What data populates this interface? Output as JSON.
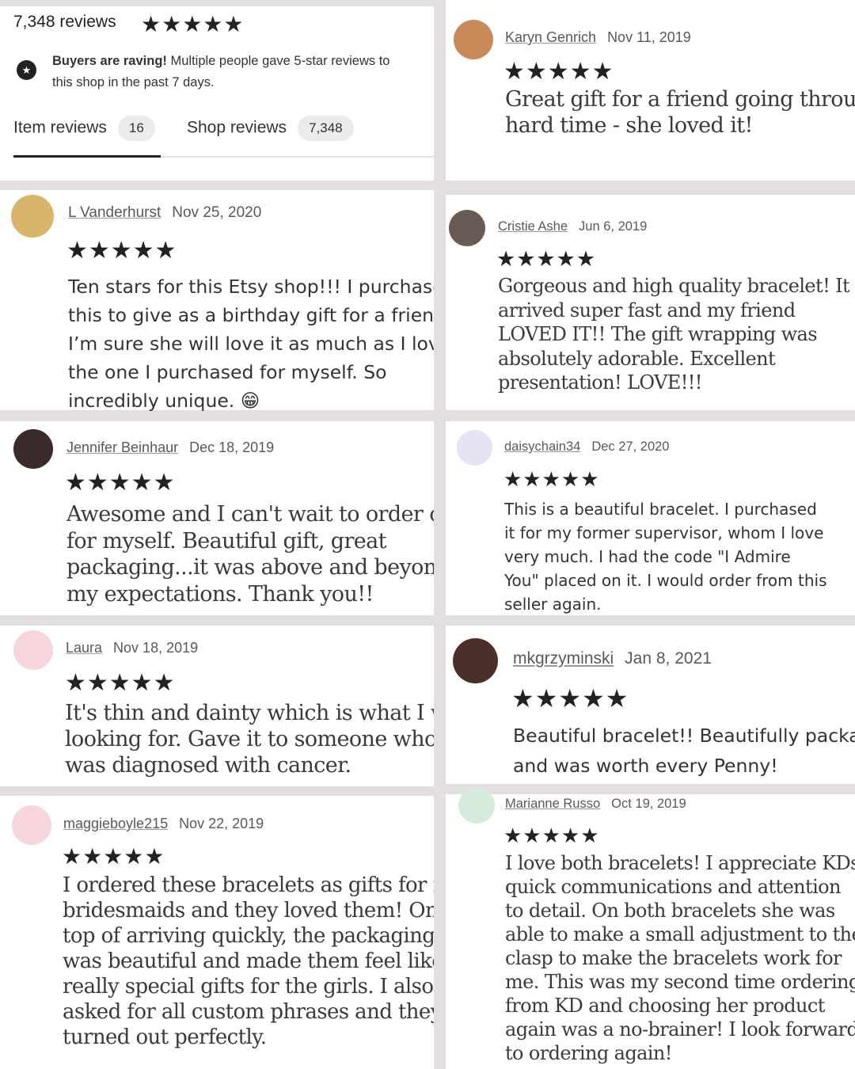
{
  "header": {
    "review_count": "7,348 reviews",
    "stars": "★★★★★",
    "rave_bold": "Buyers are raving!",
    "rave_line1": " Multiple people gave 5-star reviews to",
    "rave_line2": "this shop in the past 7 days.",
    "tabs": [
      {
        "label": "Item reviews",
        "count": "16",
        "active": true
      },
      {
        "label": "Shop reviews",
        "count": "7,348",
        "active": false
      }
    ]
  },
  "colors": {
    "background_gap": "#e3dfe0",
    "text": "#222222",
    "badge": "#ebebeb"
  },
  "reviews": [
    {
      "name": "L Vanderhurst",
      "date": "Nov 25, 2020",
      "stars": "★★★★★",
      "lines": [
        "Ten stars for this Etsy shop!!! I purchased",
        "this to give as a birthday gift for a friend.",
        "I’m sure she will love it as much as I love",
        "the one I purchased for myself. So",
        "incredibly unique. 😁"
      ],
      "avatar_color": "#d8b56a"
    },
    {
      "name": "Jennifer Beinhaur",
      "date": "Dec 18, 2019",
      "stars": "★★★★★",
      "lines": [
        "Awesome and I can't wait to order one",
        "for myself. Beautiful gift, great",
        "packaging...it was above and beyond",
        "my expectations. Thank you!!"
      ],
      "avatar_color": "#3a2a2a"
    },
    {
      "name": "Laura",
      "date": "Nov 18, 2019",
      "stars": "★★★★★",
      "lines": [
        "It's thin and dainty which is what I was",
        "looking for. Gave it to someone who",
        "was diagnosed with cancer."
      ],
      "avatar_color": "#f6d5dc"
    },
    {
      "name": "maggieboyle215",
      "date": "Nov 22, 2019",
      "stars": "★★★★★",
      "lines": [
        "I ordered these bracelets as gifts for my",
        "bridesmaids and they loved them! On",
        "top of arriving quickly, the packaging",
        "was beautiful and made them feel like",
        "really special gifts for the girls. I also",
        "asked for all custom phrases and they",
        "turned out perfectly."
      ],
      "avatar_color": "#f6d5dc"
    },
    {
      "name": "Karyn Genrich",
      "date": "Nov 11, 2019",
      "stars": "★★★★★",
      "lines": [
        "Great gift for a friend going through a",
        "hard time - she loved it!"
      ],
      "avatar_color": "#c98a5a"
    },
    {
      "name": "Cristie Ashe",
      "date": "Jun 6, 2019",
      "stars": "★★★★★",
      "lines": [
        "Gorgeous and high quality bracelet! It",
        "arrived super fast and my friend",
        "LOVED IT!! The gift wrapping was",
        "absolutely adorable. Excellent",
        "presentation! LOVE!!!"
      ],
      "avatar_color": "#6a5a55"
    },
    {
      "name": "daisychain34",
      "date": "Dec 27, 2020",
      "stars": "★★★★★",
      "lines": [
        "This is a beautiful bracelet. I purchased",
        "it for my former supervisor, whom I love",
        "very much. I had the code \"I Admire",
        "You\" placed on it. I would order from this",
        "seller again."
      ],
      "avatar_color": "#e8e3f3"
    },
    {
      "name": "mkgrzyminski",
      "date": "Jan 8, 2021",
      "stars": "★★★★★",
      "lines": [
        "Beautiful bracelet!! Beautifully packa",
        "and was worth every Penny!"
      ],
      "avatar_color": "#4a3028"
    },
    {
      "name": "Marianne Russo",
      "date": "Oct 19, 2019",
      "stars": "★★★★★",
      "lines": [
        "I love both bracelets! I appreciate KDs",
        "quick communications and attention",
        "to detail. On both bracelets she was",
        "able to make a small adjustment to the",
        "clasp to make the bracelets work for",
        "me. This was my second time ordering",
        "from KD and choosing her product",
        "again was a no-brainer! I look forward",
        "to ordering again!"
      ],
      "avatar_color": "#d5ecdc"
    }
  ]
}
